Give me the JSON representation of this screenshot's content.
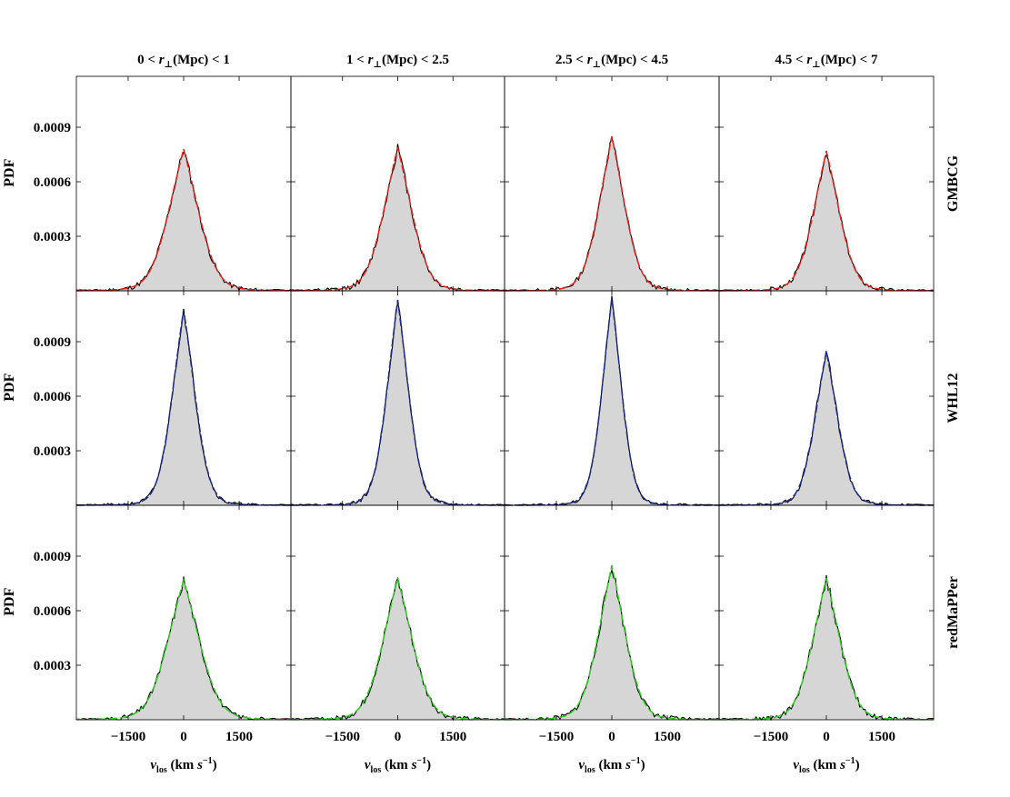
{
  "chart_data": {
    "type": "line",
    "layout": "3 rows x 4 columns of panels, shared axes",
    "column_headers": [
      {
        "lo": "0",
        "hi": "1"
      },
      {
        "lo": "1",
        "hi": "2.5"
      },
      {
        "lo": "2.5",
        "hi": "4.5"
      },
      {
        "lo": "4.5",
        "hi": "7"
      }
    ],
    "header_symbol": "r",
    "header_subscript": "⊥",
    "header_unit": "(Mpc)",
    "header_lt": "<",
    "row_labels": [
      "GMBCG",
      "WHL12",
      "redMaPPer"
    ],
    "ylabel": "PDF",
    "xlabel_symbol": "v",
    "xlabel_subscript": "los",
    "xlabel_unit_open": "(km ",
    "xlabel_unit_s": "s",
    "xlabel_unit_exp": "−1",
    "xlabel_unit_close": ")",
    "xlim": [
      -2900,
      2900
    ],
    "ylim": [
      0,
      0.00118
    ],
    "xticks": [
      -1500,
      0,
      1500
    ],
    "xtick_labels": [
      "−1500",
      "0",
      "1500"
    ],
    "yticks": [
      0.0003,
      0.0006,
      0.0009
    ],
    "ytick_labels": [
      "0.0003",
      "0.0006",
      "0.0009"
    ],
    "row_colors": [
      "#e8211c",
      "#1c2a8c",
      "#2ecc20"
    ],
    "histogram_color": "#000000",
    "fill_color": "#d6d6d6",
    "series_description": "each panel: grey-filled histogram of galaxy line-of-sight velocities (black) with a dashed fitted model curve (row color)",
    "panels": [
      {
        "row": "GMBCG",
        "bin": "0 < r⊥ < 1",
        "peak_pdf": 0.00078,
        "sigma_kms": 470,
        "noise": 2.8e-05,
        "seed": 11
      },
      {
        "row": "GMBCG",
        "bin": "1 < r⊥ < 2.5",
        "peak_pdf": 0.00079,
        "sigma_kms": 440,
        "noise": 3e-05,
        "seed": 12
      },
      {
        "row": "GMBCG",
        "bin": "2.5 < r⊥ < 4.5",
        "peak_pdf": 0.00085,
        "sigma_kms": 400,
        "noise": 2.6e-05,
        "seed": 13
      },
      {
        "row": "GMBCG",
        "bin": "4.5 < r⊥ < 7",
        "peak_pdf": 0.00077,
        "sigma_kms": 410,
        "noise": 2.6e-05,
        "seed": 14
      },
      {
        "row": "WHL12",
        "bin": "0 < r⊥ < 1",
        "peak_pdf": 0.00108,
        "sigma_kms": 360,
        "noise": 2.4e-05,
        "seed": 21
      },
      {
        "row": "WHL12",
        "bin": "1 < r⊥ < 2.5",
        "peak_pdf": 0.00113,
        "sigma_kms": 340,
        "noise": 2.4e-05,
        "seed": 22
      },
      {
        "row": "WHL12",
        "bin": "2.5 < r⊥ < 4.5",
        "peak_pdf": 0.00114,
        "sigma_kms": 310,
        "noise": 2.2e-05,
        "seed": 23
      },
      {
        "row": "WHL12",
        "bin": "4.5 < r⊥ < 7",
        "peak_pdf": 0.00085,
        "sigma_kms": 360,
        "noise": 2.6e-05,
        "seed": 24
      },
      {
        "row": "redMaPPer",
        "bin": "0 < r⊥ < 1",
        "peak_pdf": 0.00077,
        "sigma_kms": 500,
        "noise": 2.6e-05,
        "seed": 31
      },
      {
        "row": "redMaPPer",
        "bin": "1 < r⊥ < 2.5",
        "peak_pdf": 0.00078,
        "sigma_kms": 460,
        "noise": 3.2e-05,
        "seed": 32
      },
      {
        "row": "redMaPPer",
        "bin": "2.5 < r⊥ < 4.5",
        "peak_pdf": 0.00085,
        "sigma_kms": 420,
        "noise": 3.4e-05,
        "seed": 33
      },
      {
        "row": "redMaPPer",
        "bin": "4.5 < r⊥ < 7",
        "peak_pdf": 0.00078,
        "sigma_kms": 430,
        "noise": 3.2e-05,
        "seed": 34
      }
    ],
    "histogram_bins": {
      "start": -2900,
      "width": 50,
      "count": 116
    }
  }
}
